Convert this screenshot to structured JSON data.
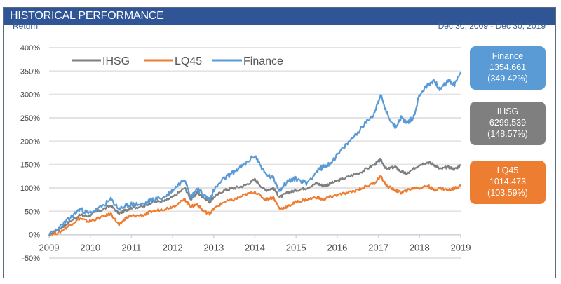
{
  "header": {
    "title": "HISTORICAL PERFORMANCE"
  },
  "y_title": "Return",
  "date_range": "Dec 30, 2009 - Dec 30, 2019",
  "cards": [
    {
      "name": "Finance",
      "value": "1354.661",
      "pct": "(349.42%)",
      "color": "#5b9bd5"
    },
    {
      "name": "IHSG",
      "value": "6299.539",
      "pct": "(148.57%)",
      "color": "#7f7f7f"
    },
    {
      "name": "LQ45",
      "value": "1014.473",
      "pct": "(103.59%)",
      "color": "#ed7d31"
    }
  ],
  "chart_data": {
    "type": "line",
    "title": "HISTORICAL PERFORMANCE",
    "xlabel": "",
    "ylabel": "Return",
    "x_ticks": [
      "2009",
      "2010",
      "2011",
      "2012",
      "2013",
      "2014",
      "2015",
      "2016",
      "2017",
      "2018",
      "2019"
    ],
    "y_ticks": [
      "400%",
      "350%",
      "300%",
      "250%",
      "200%",
      "150%",
      "100%",
      "50%",
      "0%",
      "-50%"
    ],
    "ylim": [
      -50,
      400
    ],
    "xlim": [
      2009,
      2019
    ],
    "grid": true,
    "legend": "top-left",
    "x": [
      2009.0,
      2009.25,
      2009.5,
      2009.75,
      2009.95,
      2010.2,
      2010.5,
      2010.7,
      2010.85,
      2011.0,
      2011.3,
      2011.5,
      2011.8,
      2012.0,
      2012.3,
      2012.45,
      2012.6,
      2012.75,
      2012.9,
      2013.0,
      2013.25,
      2013.5,
      2013.75,
      2014.0,
      2014.25,
      2014.45,
      2014.6,
      2014.8,
      2015.0,
      2015.25,
      2015.5,
      2015.65,
      2015.8,
      2016.0,
      2016.3,
      2016.6,
      2016.9,
      2017.05,
      2017.2,
      2017.4,
      2017.55,
      2017.7,
      2017.85,
      2018.0,
      2018.2,
      2018.35,
      2018.5,
      2018.7,
      2018.85,
      2019.0
    ],
    "series": [
      {
        "name": "IHSG",
        "color": "#7f7f7f",
        "values": [
          0,
          12,
          28,
          42,
          40,
          50,
          62,
          45,
          52,
          58,
          60,
          70,
          72,
          80,
          100,
          75,
          90,
          80,
          70,
          80,
          95,
          100,
          105,
          118,
          95,
          100,
          80,
          90,
          95,
          100,
          110,
          105,
          108,
          115,
          125,
          135,
          150,
          160,
          140,
          145,
          135,
          130,
          140,
          150,
          155,
          150,
          140,
          145,
          140,
          149
        ]
      },
      {
        "name": "LQ45",
        "color": "#ed7d31",
        "values": [
          0,
          5,
          20,
          35,
          28,
          35,
          45,
          20,
          35,
          40,
          42,
          50,
          55,
          60,
          75,
          60,
          65,
          50,
          45,
          55,
          70,
          75,
          85,
          92,
          75,
          80,
          55,
          60,
          70,
          75,
          80,
          75,
          80,
          85,
          90,
          100,
          110,
          125,
          105,
          95,
          90,
          95,
          100,
          100,
          105,
          95,
          100,
          95,
          100,
          104
        ]
      },
      {
        "name": "Finance",
        "color": "#5b9bd5",
        "values": [
          0,
          15,
          35,
          55,
          45,
          55,
          75,
          55,
          60,
          65,
          65,
          75,
          80,
          95,
          120,
          80,
          100,
          85,
          75,
          95,
          120,
          135,
          150,
          170,
          130,
          120,
          95,
          115,
          120,
          110,
          135,
          145,
          150,
          170,
          200,
          230,
          260,
          300,
          260,
          230,
          250,
          240,
          250,
          300,
          320,
          330,
          310,
          330,
          320,
          349
        ]
      }
    ]
  }
}
